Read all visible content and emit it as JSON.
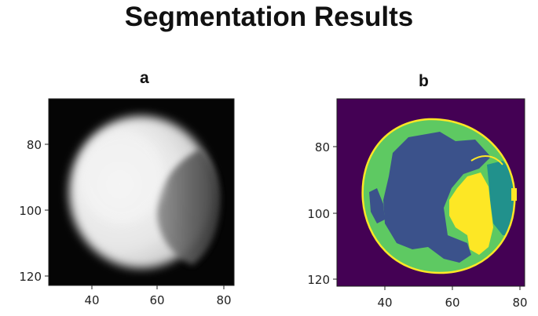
{
  "title": "Segmentation Results",
  "panels": [
    {
      "label": "a",
      "description_kind": "grayscale-image",
      "x_ticks": [
        "40",
        "60",
        "80"
      ],
      "y_ticks": [
        "80",
        "100",
        "120"
      ]
    },
    {
      "label": "b",
      "description_kind": "segmentation-map",
      "x_ticks": [
        "40",
        "60",
        "80"
      ],
      "y_ticks": [
        "80",
        "100",
        "120"
      ],
      "colors": {
        "background": "#440154",
        "class_navy": "#3b528b",
        "class_teal": "#21918c",
        "class_green": "#5ec962",
        "class_yellow": "#fde725"
      }
    }
  ]
}
